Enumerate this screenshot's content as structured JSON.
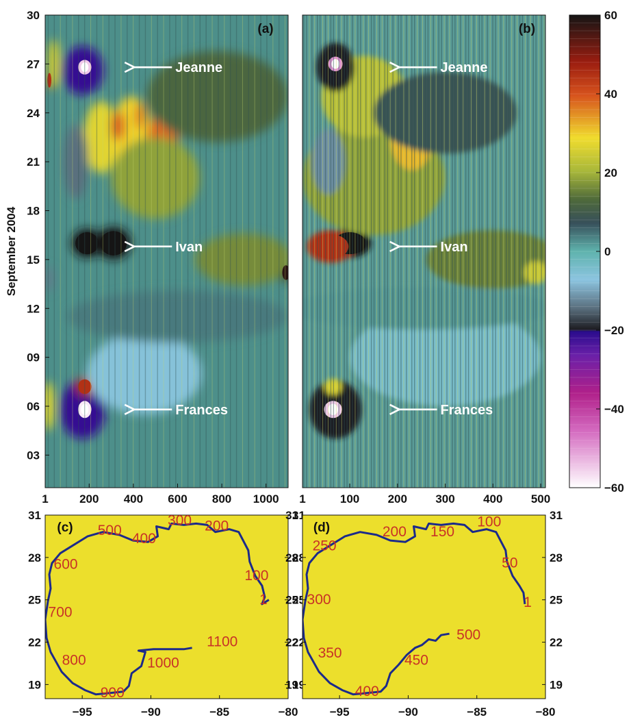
{
  "chart_data": [
    {
      "id": "a",
      "type": "heatmap",
      "panel_label": "(a)",
      "ylabel": "September 2004",
      "x_ticks": [
        "1",
        "200",
        "400",
        "600",
        "800",
        "1000"
      ],
      "x_tick_values": [
        1,
        200,
        400,
        600,
        800,
        1000
      ],
      "xlim": [
        1,
        1100
      ],
      "y_ticks": [
        "30",
        "27",
        "24",
        "21",
        "18",
        "15",
        "12",
        "09",
        "06",
        "03"
      ],
      "y_tick_values": [
        30,
        27,
        24,
        21,
        18,
        15,
        12,
        9,
        6,
        3
      ],
      "ylim": [
        1,
        30
      ],
      "annotations": [
        {
          "text": "Jeanne",
          "x": 590,
          "y": 26.8
        },
        {
          "text": "Ivan",
          "x": 590,
          "y": 15.8
        },
        {
          "text": "Frances",
          "x": 590,
          "y": 5.8
        }
      ],
      "features": [
        {
          "x": 190,
          "y": 16.0,
          "rx": 70,
          "ry": 0.9,
          "value": 60
        },
        {
          "x": 310,
          "y": 16.0,
          "rx": 80,
          "ry": 1.0,
          "value": 62
        },
        {
          "x": 255,
          "y": 22.5,
          "rx": 80,
          "ry": 2.2,
          "value": 27
        },
        {
          "x": 390,
          "y": 22.5,
          "rx": 90,
          "ry": 2.5,
          "value": 30
        },
        {
          "x": 530,
          "y": 22.3,
          "rx": 70,
          "ry": 1.6,
          "value": 38
        },
        {
          "x": 330,
          "y": 23.2,
          "rx": 30,
          "ry": 0.9,
          "value": 40
        },
        {
          "x": 430,
          "y": 23.8,
          "rx": 25,
          "ry": 0.8,
          "value": 36
        },
        {
          "x": 500,
          "y": 20.0,
          "rx": 200,
          "ry": 2.5,
          "value": 18
        },
        {
          "x": 780,
          "y": 25.0,
          "rx": 320,
          "ry": 2.8,
          "value": 12
        },
        {
          "x": 180,
          "y": 26.8,
          "rx": 40,
          "ry": 0.6,
          "value": -55
        },
        {
          "x": 170,
          "y": 26.6,
          "rx": 95,
          "ry": 1.5,
          "value": -22
        },
        {
          "x": 20,
          "y": 26.0,
          "rx": 12,
          "ry": 0.6,
          "value": 45
        },
        {
          "x": 40,
          "y": 27.0,
          "rx": 30,
          "ry": 1.5,
          "value": 24
        },
        {
          "x": 140,
          "y": 21.0,
          "rx": 55,
          "ry": 2.3,
          "value": -15
        },
        {
          "x": 180,
          "y": 5.8,
          "rx": 40,
          "ry": 0.7,
          "value": -58
        },
        {
          "x": 170,
          "y": 5.8,
          "rx": 105,
          "ry": 1.8,
          "value": -22
        },
        {
          "x": 180,
          "y": 7.2,
          "rx": 40,
          "ry": 0.6,
          "value": 45
        },
        {
          "x": 15,
          "y": 6.0,
          "rx": 30,
          "ry": 1.5,
          "value": 26
        },
        {
          "x": 450,
          "y": 8.0,
          "rx": 260,
          "ry": 2.5,
          "value": -6
        },
        {
          "x": 20,
          "y": 13.8,
          "rx": 20,
          "ry": 0.8,
          "value": -14
        },
        {
          "x": 1090,
          "y": 14.2,
          "rx": 22,
          "ry": 0.6,
          "value": 58
        },
        {
          "x": 900,
          "y": 15.0,
          "rx": 220,
          "ry": 1.6,
          "value": 16
        },
        {
          "x": 600,
          "y": 11.5,
          "rx": 500,
          "ry": 1.6,
          "value": 4
        }
      ]
    },
    {
      "id": "b",
      "type": "heatmap",
      "panel_label": "(b)",
      "x_ticks": [
        "1",
        "100",
        "200",
        "300",
        "400",
        "500"
      ],
      "x_tick_values": [
        1,
        100,
        200,
        300,
        400,
        500
      ],
      "xlim": [
        1,
        510
      ],
      "y_ticks": [],
      "ylim": [
        1,
        30
      ],
      "annotations": [
        {
          "text": "Jeanne",
          "x": 290,
          "y": 26.8
        },
        {
          "text": "Ivan",
          "x": 290,
          "y": 15.8
        },
        {
          "text": "Frances",
          "x": 290,
          "y": 5.8
        }
      ],
      "features": [
        {
          "x": 100,
          "y": 16.0,
          "rx": 45,
          "ry": 0.9,
          "value": 60
        },
        {
          "x": 60,
          "y": 15.8,
          "rx": 50,
          "ry": 1.0,
          "value": 45
        },
        {
          "x": 150,
          "y": 20.0,
          "rx": 150,
          "ry": 3.5,
          "value": 18
        },
        {
          "x": 230,
          "y": 22.5,
          "rx": 45,
          "ry": 2.0,
          "value": 32
        },
        {
          "x": 130,
          "y": 25.0,
          "rx": 90,
          "ry": 2.5,
          "value": 22
        },
        {
          "x": 300,
          "y": 24.0,
          "rx": 150,
          "ry": 2.5,
          "value": 8
        },
        {
          "x": 70,
          "y": 27.0,
          "rx": 20,
          "ry": 0.6,
          "value": -50
        },
        {
          "x": 70,
          "y": 26.8,
          "rx": 40,
          "ry": 1.5,
          "value": -20
        },
        {
          "x": 55,
          "y": 21.0,
          "rx": 35,
          "ry": 2.0,
          "value": -12
        },
        {
          "x": 65,
          "y": 5.8,
          "rx": 25,
          "ry": 0.7,
          "value": -55
        },
        {
          "x": 70,
          "y": 5.8,
          "rx": 55,
          "ry": 1.8,
          "value": -20
        },
        {
          "x": 65,
          "y": 7.2,
          "rx": 18,
          "ry": 0.5,
          "value": 26
        },
        {
          "x": 400,
          "y": 15.0,
          "rx": 140,
          "ry": 1.8,
          "value": 15
        },
        {
          "x": 490,
          "y": 14.2,
          "rx": 25,
          "ry": 0.7,
          "value": 24
        },
        {
          "x": 300,
          "y": 9.0,
          "rx": 200,
          "ry": 3.0,
          "value": -4
        },
        {
          "x": 250,
          "y": 12.0,
          "rx": 280,
          "ry": 1.3,
          "value": 2
        }
      ]
    },
    {
      "id": "c",
      "type": "line",
      "panel_label": "(c)",
      "x_ticks": [
        "−95",
        "−90",
        "−85",
        "−80"
      ],
      "x_tick_values": [
        -95,
        -90,
        -85,
        -80
      ],
      "xlim": [
        -97.7,
        -80
      ],
      "y_ticks": [
        "31",
        "28",
        "25",
        "22",
        "19"
      ],
      "y_tick_values": [
        31,
        28,
        25,
        22,
        19
      ],
      "ylim": [
        18,
        31
      ],
      "background": "#ecdf2c",
      "line_color": "#1c2a8a",
      "track": [
        [
          -81.4,
          25.0
        ],
        [
          -81.9,
          24.7
        ],
        [
          -81.7,
          25.2
        ],
        [
          -81.9,
          26.0
        ],
        [
          -82.4,
          26.7
        ],
        [
          -82.8,
          27.7
        ],
        [
          -82.9,
          28.5
        ],
        [
          -83.6,
          29.8
        ],
        [
          -84.3,
          30.0
        ],
        [
          -85.3,
          29.8
        ],
        [
          -85.9,
          30.3
        ],
        [
          -86.7,
          30.4
        ],
        [
          -87.6,
          30.3
        ],
        [
          -88.5,
          30.4
        ],
        [
          -88.7,
          30.0
        ],
        [
          -89.6,
          30.2
        ],
        [
          -89.5,
          29.5
        ],
        [
          -90.2,
          29.1
        ],
        [
          -91.3,
          29.2
        ],
        [
          -92.3,
          29.6
        ],
        [
          -93.5,
          29.8
        ],
        [
          -94.6,
          29.5
        ],
        [
          -95.6,
          28.9
        ],
        [
          -96.6,
          28.3
        ],
        [
          -97.2,
          27.6
        ],
        [
          -97.4,
          26.8
        ],
        [
          -97.3,
          25.8
        ],
        [
          -97.5,
          24.9
        ],
        [
          -97.7,
          23.6
        ],
        [
          -97.6,
          22.3
        ],
        [
          -97.3,
          21.3
        ],
        [
          -96.5,
          19.9
        ],
        [
          -95.7,
          19.1
        ],
        [
          -94.8,
          18.6
        ],
        [
          -94.0,
          18.3
        ],
        [
          -93.0,
          18.4
        ],
        [
          -92.0,
          18.5
        ],
        [
          -91.6,
          18.9
        ],
        [
          -91.4,
          19.8
        ],
        [
          -90.7,
          20.3
        ],
        [
          -90.4,
          21.3
        ],
        [
          -90.9,
          21.4
        ],
        [
          -89.8,
          21.5
        ],
        [
          -88.6,
          21.5
        ],
        [
          -87.6,
          21.5
        ],
        [
          -87.0,
          21.6
        ]
      ],
      "annotations": [
        {
          "text": "1",
          "x": -81.8,
          "y": 24.7
        },
        {
          "text": "100",
          "x": -82.3,
          "y": 26.4
        },
        {
          "text": "200",
          "x": -85.2,
          "y": 29.9
        },
        {
          "text": "300",
          "x": -87.9,
          "y": 30.3
        },
        {
          "text": "400",
          "x": -90.5,
          "y": 29.0
        },
        {
          "text": "500",
          "x": -93.0,
          "y": 29.6
        },
        {
          "text": "600",
          "x": -96.2,
          "y": 27.2
        },
        {
          "text": "700",
          "x": -96.6,
          "y": 23.8
        },
        {
          "text": "800",
          "x": -95.6,
          "y": 20.4
        },
        {
          "text": "900",
          "x": -92.8,
          "y": 18.1
        },
        {
          "text": "1000",
          "x": -89.1,
          "y": 20.2
        },
        {
          "text": "1100",
          "x": -84.8,
          "y": 21.7
        }
      ]
    },
    {
      "id": "d",
      "type": "line",
      "panel_label": "(d)",
      "x_ticks": [
        "−95",
        "−90",
        "−85",
        "−80"
      ],
      "x_tick_values": [
        -95,
        -90,
        -85,
        -80
      ],
      "xlim": [
        -97.7,
        -80
      ],
      "y_ticks": [
        "31",
        "28",
        "25",
        "22",
        "19"
      ],
      "y_tick_values": [
        31,
        28,
        25,
        22,
        19
      ],
      "ylim": [
        18,
        31
      ],
      "background": "#ecdf2c",
      "line_color": "#1c2a8a",
      "track": [
        [
          -81.5,
          24.7
        ],
        [
          -81.6,
          25.5
        ],
        [
          -81.9,
          26.0
        ],
        [
          -82.4,
          26.7
        ],
        [
          -82.8,
          27.7
        ],
        [
          -82.9,
          28.5
        ],
        [
          -83.6,
          29.8
        ],
        [
          -84.3,
          30.0
        ],
        [
          -85.3,
          29.8
        ],
        [
          -85.9,
          30.3
        ],
        [
          -86.7,
          30.4
        ],
        [
          -87.6,
          30.3
        ],
        [
          -88.5,
          30.4
        ],
        [
          -88.7,
          30.0
        ],
        [
          -89.6,
          30.2
        ],
        [
          -89.5,
          29.5
        ],
        [
          -90.2,
          29.1
        ],
        [
          -91.3,
          29.2
        ],
        [
          -92.3,
          29.6
        ],
        [
          -93.5,
          29.8
        ],
        [
          -94.6,
          29.5
        ],
        [
          -95.6,
          28.9
        ],
        [
          -96.6,
          28.3
        ],
        [
          -97.2,
          27.6
        ],
        [
          -97.4,
          26.8
        ],
        [
          -97.3,
          25.8
        ],
        [
          -97.5,
          24.9
        ],
        [
          -97.7,
          23.6
        ],
        [
          -97.6,
          22.3
        ],
        [
          -97.3,
          21.3
        ],
        [
          -96.5,
          19.9
        ],
        [
          -95.7,
          19.1
        ],
        [
          -94.8,
          18.6
        ],
        [
          -94.0,
          18.3
        ],
        [
          -93.0,
          18.4
        ],
        [
          -92.0,
          18.5
        ],
        [
          -91.6,
          18.9
        ],
        [
          -91.3,
          19.8
        ],
        [
          -90.7,
          20.4
        ],
        [
          -90.1,
          21.1
        ],
        [
          -89.5,
          21.6
        ],
        [
          -89.0,
          21.8
        ],
        [
          -88.5,
          22.2
        ],
        [
          -88.0,
          22.1
        ],
        [
          -87.6,
          22.5
        ],
        [
          -87.0,
          22.6
        ]
      ],
      "annotations": [
        {
          "text": "1",
          "x": -81.3,
          "y": 24.5
        },
        {
          "text": "50",
          "x": -82.6,
          "y": 27.3
        },
        {
          "text": "100",
          "x": -84.1,
          "y": 30.2
        },
        {
          "text": "150",
          "x": -87.5,
          "y": 29.5
        },
        {
          "text": "200",
          "x": -91.0,
          "y": 29.5
        },
        {
          "text": "250",
          "x": -96.1,
          "y": 28.5
        },
        {
          "text": "300",
          "x": -96.5,
          "y": 24.7
        },
        {
          "text": "350",
          "x": -95.7,
          "y": 20.9
        },
        {
          "text": "400",
          "x": -93.0,
          "y": 18.2
        },
        {
          "text": "450",
          "x": -89.4,
          "y": 20.4
        },
        {
          "text": "500",
          "x": -85.6,
          "y": 22.2
        }
      ]
    }
  ],
  "colorbar": {
    "ticks": [
      "60",
      "40",
      "20",
      "0",
      "−20",
      "−40",
      "−60"
    ],
    "tick_values": [
      60,
      40,
      20,
      0,
      -20,
      -40,
      -60
    ],
    "range": [
      -60,
      60
    ]
  }
}
